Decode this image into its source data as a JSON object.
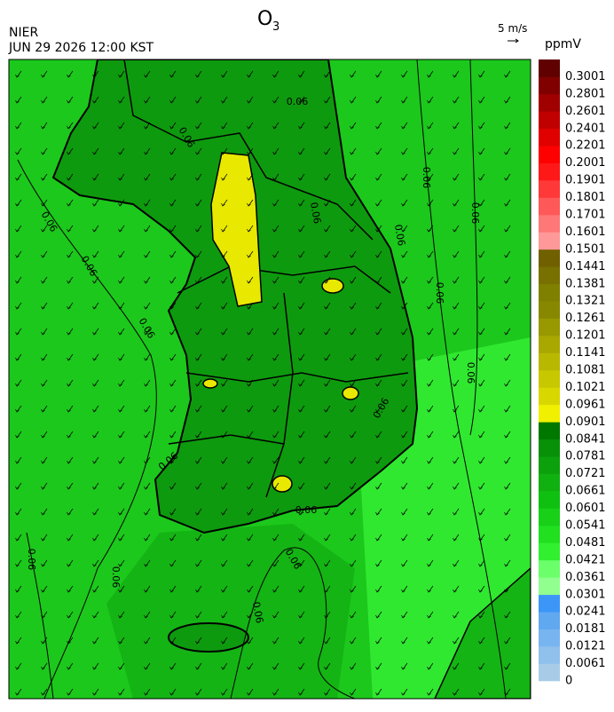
{
  "header": {
    "title": {
      "text": "O",
      "subscript": "3"
    },
    "agency": "NIER",
    "datetime": "JUN 29 2026 12:00 KST",
    "wind_scale": "5 m/s"
  },
  "colorbar": {
    "unit": "ppmV",
    "labels": [
      "0",
      "0.0061",
      "0.0121",
      "0.0181",
      "0.0241",
      "0.0301",
      "0.0361",
      "0.0421",
      "0.0481",
      "0.0541",
      "0.0601",
      "0.0661",
      "0.0721",
      "0.0781",
      "0.0841",
      "0.0901",
      "0.0961",
      "0.1021",
      "0.1081",
      "0.1141",
      "0.1201",
      "0.1261",
      "0.1321",
      "0.1381",
      "0.1441",
      "0.1501",
      "0.1601",
      "0.1701",
      "0.1801",
      "0.1901",
      "0.2001",
      "0.2201",
      "0.2401",
      "0.2601",
      "0.2801",
      "0.3001"
    ],
    "colors": [
      "#a8cce8",
      "#90c0ec",
      "#78b4f0",
      "#60a8f0",
      "#3c96f8",
      "#90ff90",
      "#6cff6c",
      "#30f030",
      "#20e020",
      "#18d018",
      "#10c010",
      "#10b010",
      "#0ca00c",
      "#089008",
      "#007800",
      "#f0f000",
      "#d8d800",
      "#c8c800",
      "#b8b800",
      "#a8a800",
      "#989800",
      "#888800",
      "#808000",
      "#787000",
      "#706000",
      "#ff9898",
      "#ff7878",
      "#ff5858",
      "#ff3838",
      "#ff1818",
      "#ff0000",
      "#e00000",
      "#c00000",
      "#a00000",
      "#800000",
      "#600000"
    ]
  },
  "map": {
    "contour_labels": [
      "0.06",
      "0.06",
      "0.06",
      "0.06",
      "0.06",
      "0.06",
      "0.06",
      "0.06",
      "0.06",
      "0.06",
      "0.06",
      "0.06",
      "0.06",
      "0.06",
      "0.06",
      "0.06",
      "0.06",
      "0.06"
    ]
  }
}
